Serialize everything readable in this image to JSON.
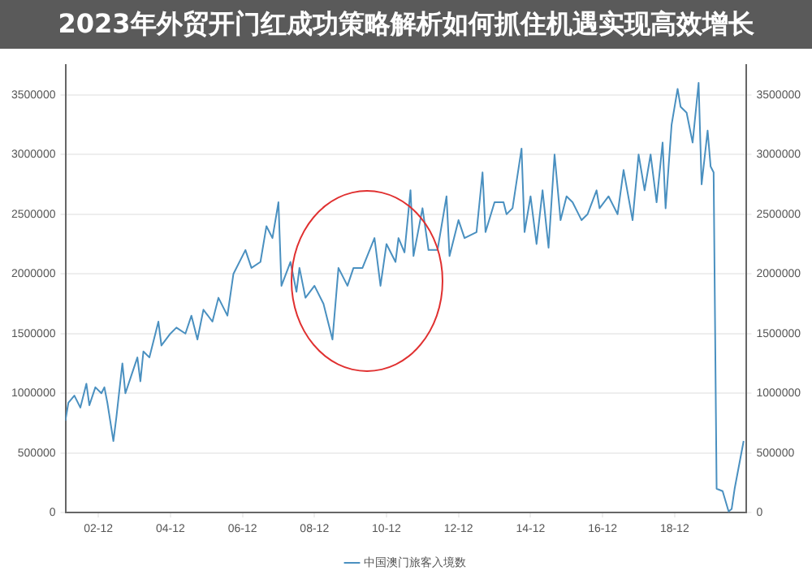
{
  "chart_data": {
    "type": "line",
    "title": "2023年外贸开门红成功策略解析如何抓住机遇实现高效增长",
    "x": [
      "2002-01",
      "2002-02",
      "2002-04",
      "2002-06",
      "2002-08",
      "2002-09",
      "2002-11",
      "2003-01",
      "2003-02",
      "2003-03",
      "2003-05",
      "2003-06",
      "2003-08",
      "2003-09",
      "2003-11",
      "2004-01",
      "2004-02",
      "2004-03",
      "2004-05",
      "2004-08",
      "2004-09",
      "2004-12",
      "2005-02",
      "2005-05",
      "2005-07",
      "2005-09",
      "2005-11",
      "2006-02",
      "2006-04",
      "2006-07",
      "2006-09",
      "2007-01",
      "2007-03",
      "2007-06",
      "2007-08",
      "2007-10",
      "2007-12",
      "2008-01",
      "2008-04",
      "2008-06",
      "2008-07",
      "2008-09",
      "2008-12",
      "2009-03",
      "2009-06",
      "2009-08",
      "2009-11",
      "2010-01",
      "2010-04",
      "2010-08",
      "2010-10",
      "2010-12",
      "2011-03",
      "2011-04",
      "2011-06",
      "2011-08",
      "2011-09",
      "2011-12",
      "2012-02",
      "2012-05",
      "2012-08",
      "2012-09",
      "2012-12",
      "2013-02",
      "2013-06",
      "2013-08",
      "2013-09",
      "2013-12",
      "2014-03",
      "2014-04",
      "2014-06",
      "2014-09",
      "2014-10",
      "2014-12",
      "2015-02",
      "2015-04",
      "2015-06",
      "2015-08",
      "2015-10",
      "2015-12",
      "2016-02",
      "2016-05",
      "2016-07",
      "2016-10",
      "2016-11",
      "2017-02",
      "2017-05",
      "2017-07",
      "2017-10",
      "2017-12",
      "2018-02",
      "2018-04",
      "2018-06",
      "2018-08",
      "2018-09",
      "2018-11",
      "2019-01",
      "2019-02",
      "2019-04",
      "2019-06",
      "2019-08",
      "2019-09",
      "2019-11",
      "2019-12",
      "2020-01",
      "2020-02",
      "2020-04",
      "2020-06",
      "2020-07",
      "2020-08",
      "2020-11"
    ],
    "series": [
      {
        "name": "中国澳门旅客入境数",
        "color": "#4a90c0",
        "values": [
          770000,
          920000,
          980000,
          880000,
          1080000,
          900000,
          1050000,
          1000000,
          1050000,
          920000,
          600000,
          800000,
          1250000,
          1000000,
          1150000,
          1300000,
          1100000,
          1350000,
          1300000,
          1600000,
          1400000,
          1500000,
          1550000,
          1500000,
          1650000,
          1450000,
          1700000,
          1600000,
          1800000,
          1650000,
          2000000,
          2200000,
          2050000,
          2100000,
          2400000,
          2300000,
          2600000,
          1900000,
          2100000,
          1850000,
          2050000,
          1800000,
          1900000,
          1750000,
          1450000,
          2050000,
          1900000,
          2050000,
          2050000,
          2300000,
          1900000,
          2250000,
          2100000,
          2300000,
          2180000,
          2700000,
          2150000,
          2550000,
          2200000,
          2200000,
          2650000,
          2150000,
          2450000,
          2300000,
          2350000,
          2850000,
          2350000,
          2600000,
          2600000,
          2500000,
          2550000,
          3050000,
          2350000,
          2650000,
          2250000,
          2700000,
          2220000,
          3000000,
          2450000,
          2650000,
          2600000,
          2450000,
          2500000,
          2700000,
          2550000,
          2650000,
          2500000,
          2870000,
          2450000,
          3000000,
          2700000,
          3000000,
          2600000,
          3100000,
          2550000,
          3250000,
          3550000,
          3400000,
          3350000,
          3100000,
          3600000,
          2750000,
          3200000,
          2900000,
          2850000,
          200000,
          180000,
          10000,
          30000,
          200000,
          600000
        ]
      }
    ],
    "xlim": [
      "2002-01",
      "2020-12"
    ],
    "xticks": [
      {
        "value": "2002-12",
        "label": "02-12"
      },
      {
        "value": "2004-12",
        "label": "04-12"
      },
      {
        "value": "2006-12",
        "label": "06-12"
      },
      {
        "value": "2008-12",
        "label": "08-12"
      },
      {
        "value": "2010-12",
        "label": "10-12"
      },
      {
        "value": "2012-12",
        "label": "12-12"
      },
      {
        "value": "2014-12",
        "label": "14-12"
      },
      {
        "value": "2016-12",
        "label": "16-12"
      },
      {
        "value": "2018-12",
        "label": "18-12"
      }
    ],
    "ylim": [
      0,
      3750000
    ],
    "yticks": [
      0,
      500000,
      1000000,
      1500000,
      2000000,
      2500000,
      3000000,
      3500000
    ],
    "y2lim": [
      0,
      3750000
    ],
    "y2ticks": [
      0,
      500000,
      1000000,
      1500000,
      2000000,
      2500000,
      3000000,
      3500000
    ],
    "grid": "y",
    "legend": "bottom",
    "marker": "none",
    "line_style": "solid"
  }
}
